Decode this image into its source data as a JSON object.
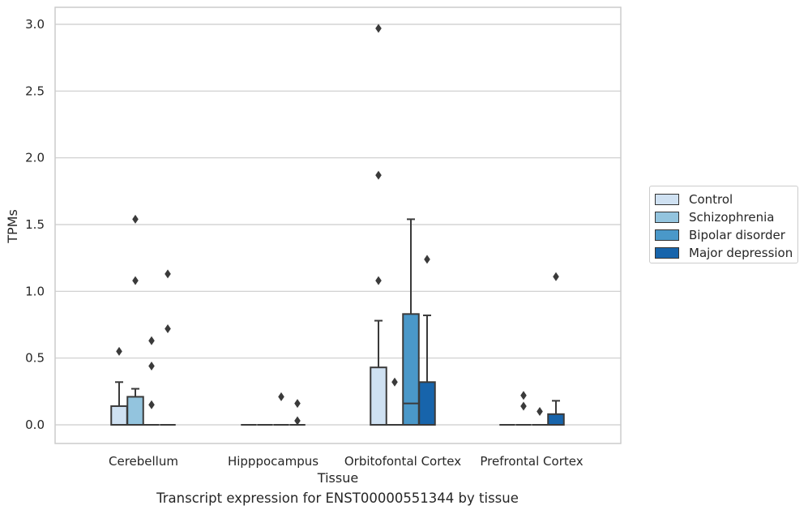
{
  "caption": "Transcript expression for ENST00000551344 by tissue",
  "colors": {
    "Control": "#cfe1f2",
    "Schizophrenia": "#93c4de",
    "Bipolar disorder": "#4a98c9",
    "Major depression": "#1764ab",
    "grid": "#cccccc",
    "line": "#3a3a3a"
  },
  "chart_data": {
    "type": "box",
    "xlabel": "Tissue",
    "ylabel": "TPMs",
    "ylim": [
      -0.15,
      3.12
    ],
    "yticks": [
      "0.0",
      "0.5",
      "1.0",
      "1.5",
      "2.0",
      "2.5",
      "3.0"
    ],
    "categories": [
      "Cerebellum",
      "Hipppocampus",
      "Orbitofontal Cortex",
      "Prefrontal Cortex"
    ],
    "grid": "horizontal",
    "legend_position": "right",
    "series": [
      {
        "name": "Control",
        "boxes": [
          {
            "q1": 0.0,
            "median": 0.0,
            "q3": 0.14,
            "whislo": 0.0,
            "whishi": 0.32,
            "fliers": [
              0.55
            ]
          },
          {
            "q1": 0.0,
            "median": 0.0,
            "q3": 0.0,
            "whislo": 0.0,
            "whishi": 0.0,
            "fliers": []
          },
          {
            "q1": 0.0,
            "median": 0.0,
            "q3": 0.43,
            "whislo": 0.0,
            "whishi": 0.78,
            "fliers": [
              1.08,
              1.87,
              2.97
            ]
          },
          {
            "q1": 0.0,
            "median": 0.0,
            "q3": 0.0,
            "whislo": 0.0,
            "whishi": 0.0,
            "fliers": []
          }
        ]
      },
      {
        "name": "Schizophrenia",
        "boxes": [
          {
            "q1": 0.0,
            "median": 0.0,
            "q3": 0.21,
            "whislo": 0.0,
            "whishi": 0.27,
            "fliers": [
              1.08,
              1.54
            ]
          },
          {
            "q1": 0.0,
            "median": 0.0,
            "q3": 0.0,
            "whislo": 0.0,
            "whishi": 0.0,
            "fliers": []
          },
          {
            "q1": 0.0,
            "median": 0.0,
            "q3": 0.0,
            "whislo": 0.0,
            "whishi": 0.0,
            "fliers": [
              0.32
            ]
          },
          {
            "q1": 0.0,
            "median": 0.0,
            "q3": 0.0,
            "whislo": 0.0,
            "whishi": 0.0,
            "fliers": [
              0.14,
              0.22
            ]
          }
        ]
      },
      {
        "name": "Bipolar disorder",
        "boxes": [
          {
            "q1": 0.0,
            "median": 0.0,
            "q3": 0.0,
            "whislo": 0.0,
            "whishi": 0.0,
            "fliers": [
              0.15,
              0.44,
              0.63
            ]
          },
          {
            "q1": 0.0,
            "median": 0.0,
            "q3": 0.0,
            "whislo": 0.0,
            "whishi": 0.0,
            "fliers": [
              0.21
            ]
          },
          {
            "q1": 0.0,
            "median": 0.16,
            "q3": 0.83,
            "whislo": 0.0,
            "whishi": 1.54,
            "fliers": []
          },
          {
            "q1": 0.0,
            "median": 0.0,
            "q3": 0.0,
            "whislo": 0.0,
            "whishi": 0.0,
            "fliers": [
              0.1
            ]
          }
        ]
      },
      {
        "name": "Major depression",
        "boxes": [
          {
            "q1": 0.0,
            "median": 0.0,
            "q3": 0.0,
            "whislo": 0.0,
            "whishi": 0.0,
            "fliers": [
              0.72,
              1.13
            ]
          },
          {
            "q1": 0.0,
            "median": 0.0,
            "q3": 0.0,
            "whislo": 0.0,
            "whishi": 0.0,
            "fliers": [
              0.03,
              0.16
            ]
          },
          {
            "q1": 0.0,
            "median": 0.0,
            "q3": 0.32,
            "whislo": 0.0,
            "whishi": 0.82,
            "fliers": [
              1.24
            ]
          },
          {
            "q1": 0.0,
            "median": 0.0,
            "q3": 0.08,
            "whislo": 0.0,
            "whishi": 0.18,
            "fliers": [
              1.11
            ]
          }
        ]
      }
    ]
  }
}
